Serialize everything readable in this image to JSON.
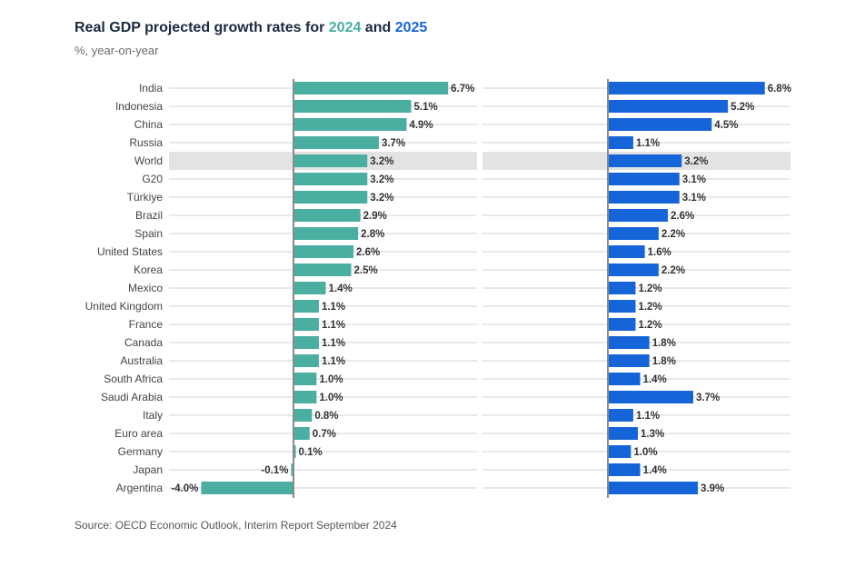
{
  "title": {
    "prefix": "Real GDP projected growth rates for ",
    "year1": "2024",
    "connector": " and ",
    "year2": "2025"
  },
  "subtitle": "%, year-on-year",
  "source": "Source: OECD Economic Outlook, Interim Report September 2024",
  "colors": {
    "series_2024": "#4aaea0",
    "series_2025": "#1565d8",
    "highlight_row": "#e3e3e3"
  },
  "chart_data": {
    "type": "bar",
    "orientation": "horizontal",
    "highlight": "World",
    "categories": [
      "India",
      "Indonesia",
      "China",
      "Russia",
      "World",
      "G20",
      "Türkiye",
      "Brazil",
      "Spain",
      "United States",
      "Korea",
      "Mexico",
      "United Kingdom",
      "France",
      "Canada",
      "Australia",
      "South Africa",
      "Saudi Arabia",
      "Italy",
      "Euro area",
      "Germany",
      "Japan",
      "Argentina"
    ],
    "series": [
      {
        "name": "2024",
        "values": [
          6.7,
          5.1,
          4.9,
          3.7,
          3.2,
          3.2,
          3.2,
          2.9,
          2.8,
          2.6,
          2.5,
          1.4,
          1.1,
          1.1,
          1.1,
          1.1,
          1.0,
          1.0,
          0.8,
          0.7,
          0.1,
          -0.1,
          -4.0
        ],
        "labels": [
          "6.7%",
          "5.1%",
          "4.9%",
          "3.7%",
          "3.2%",
          "3.2%",
          "3.2%",
          "2.9%",
          "2.8%",
          "2.6%",
          "2.5%",
          "1.4%",
          "1.1%",
          "1.1%",
          "1.1%",
          "1.1%",
          "1.0%",
          "1.0%",
          "0.8%",
          "0.7%",
          "0.1%",
          "-0.1%",
          "-4.0%"
        ]
      },
      {
        "name": "2025",
        "values": [
          6.8,
          5.2,
          4.5,
          1.1,
          3.2,
          3.1,
          3.1,
          2.6,
          2.2,
          1.6,
          2.2,
          1.2,
          1.2,
          1.2,
          1.8,
          1.8,
          1.4,
          3.7,
          1.1,
          1.3,
          1.0,
          1.4,
          3.9
        ],
        "labels": [
          "6.8%",
          "5.2%",
          "4.5%",
          "1.1%",
          "3.2%",
          "3.1%",
          "3.1%",
          "2.6%",
          "2.2%",
          "1.6%",
          "2.2%",
          "1.2%",
          "1.2%",
          "1.2%",
          "1.8%",
          "1.8%",
          "1.4%",
          "3.7%",
          "1.1%",
          "1.3%",
          "1.0%",
          "1.4%",
          "3.9%"
        ]
      }
    ]
  }
}
